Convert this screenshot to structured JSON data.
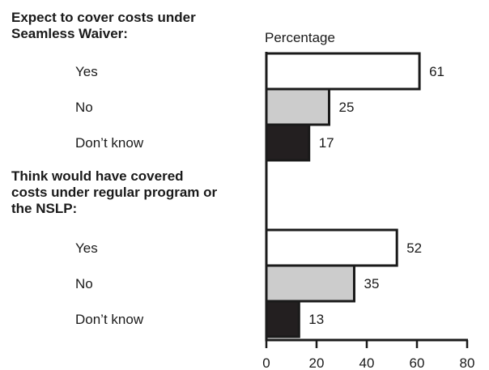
{
  "chart_data": {
    "type": "bar",
    "orientation": "horizontal",
    "axis_title": "Percentage",
    "xlim": [
      0,
      80
    ],
    "xticks": [
      0,
      20,
      40,
      60,
      80
    ],
    "grid": false,
    "legend": "none",
    "colors": {
      "Yes": "#ffffff",
      "No": "#cccccc",
      "Don’t know": "#231f20",
      "outline": "#1a1a1a"
    },
    "groups": [
      {
        "title_lines": [
          "Expect to cover costs under",
          "Seamless Waiver:"
        ],
        "bars": [
          {
            "label": "Yes",
            "value": 61
          },
          {
            "label": "No",
            "value": 25
          },
          {
            "label": "Don’t know",
            "value": 17
          }
        ]
      },
      {
        "title_lines": [
          "Think would have covered",
          "costs under regular program or",
          "the NSLP:"
        ],
        "bars": [
          {
            "label": "Yes",
            "value": 52
          },
          {
            "label": "No",
            "value": 35
          },
          {
            "label": "Don’t know",
            "value": 13
          }
        ]
      }
    ]
  }
}
